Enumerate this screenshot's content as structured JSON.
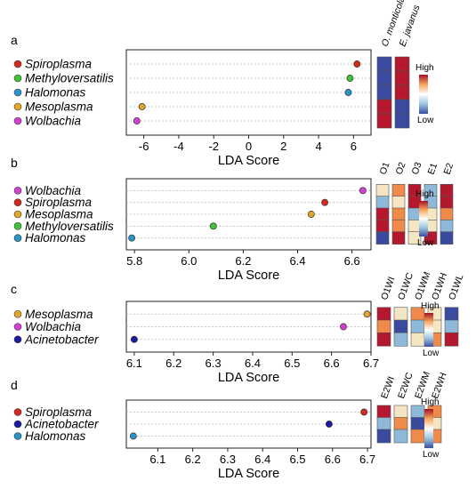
{
  "colors": {
    "Spiroplasma": "#d42a1e",
    "Methyloversatilis": "#3ec43a",
    "Halomonas": "#2a93c9",
    "Mesoplasma": "#e3a62a",
    "Wolbachia": "#d43fd6",
    "Acinetobacter": "#1a1aa3",
    "heat_levels": [
      "#3a4a9e",
      "#8fb9d9",
      "#f4e6c2",
      "#f08a4b",
      "#b3182e"
    ],
    "gradient": [
      "#3b4fa3",
      "#9cc5e0",
      "#ffffff",
      "#f6a45c",
      "#a50f27"
    ]
  },
  "heat_key": {
    "high": "High",
    "low": "Low"
  },
  "chart_data": [
    {
      "panel": "a",
      "type": "scatter",
      "xlabel": "LDA Score",
      "xlim": [
        -7,
        7
      ],
      "xticks": [
        -6,
        -4,
        -2,
        0,
        2,
        4,
        6
      ],
      "tick_labels": [
        "-6",
        "-4",
        "-2",
        "0",
        "2",
        "4",
        "6"
      ],
      "taxa": [
        "Spiroplasma",
        "Methyloversatilis",
        "Halomonas",
        "Mesoplasma",
        "Wolbachia"
      ],
      "values": [
        6.2,
        5.8,
        5.7,
        -6.1,
        -6.4
      ],
      "heatmap": {
        "columns": [
          "O. monticola",
          "E. javanus"
        ],
        "levels": [
          [
            0,
            4
          ],
          [
            0,
            4
          ],
          [
            0,
            4
          ],
          [
            4,
            0
          ],
          [
            4,
            0
          ]
        ]
      }
    },
    {
      "panel": "b",
      "type": "scatter",
      "xlabel": "LDA Score",
      "xlim": [
        5.77,
        6.67
      ],
      "xticks": [
        5.8,
        6.0,
        6.2,
        6.4,
        6.6
      ],
      "tick_labels": [
        "5.8",
        "6.0",
        "6.2",
        "6.4",
        "6.6"
      ],
      "taxa": [
        "Wolbachia",
        "Spiroplasma",
        "Mesoplasma",
        "Methyloversatilis",
        "Halomonas"
      ],
      "values": [
        6.64,
        6.5,
        6.45,
        6.09,
        5.79
      ],
      "heatmap": {
        "columns": [
          "O1",
          "O2",
          "O3",
          "E1",
          "E2"
        ],
        "levels": [
          [
            2,
            3,
            4,
            1,
            4
          ],
          [
            1,
            2,
            4,
            1,
            4
          ],
          [
            4,
            3,
            1,
            2,
            3
          ],
          [
            4,
            3,
            2,
            2,
            1
          ],
          [
            0,
            4,
            2,
            4,
            0
          ]
        ]
      }
    },
    {
      "panel": "c",
      "type": "scatter",
      "xlabel": "LDA Score",
      "xlim": [
        6.08,
        6.7
      ],
      "xticks": [
        6.1,
        6.2,
        6.3,
        6.4,
        6.5,
        6.6,
        6.7
      ],
      "tick_labels": [
        "6.1",
        "6.2",
        "6.3",
        "6.4",
        "6.5",
        "6.6",
        "6.7"
      ],
      "taxa": [
        "Mesoplasma",
        "Wolbachia",
        "Acinetobacter"
      ],
      "values": [
        6.69,
        6.63,
        6.1
      ],
      "heatmap": {
        "columns": [
          "O1WI",
          "O1WC",
          "O1WM",
          "O1WH",
          "O1WL"
        ],
        "levels": [
          [
            4,
            2,
            3,
            2,
            0
          ],
          [
            3,
            0,
            1,
            2,
            1
          ],
          [
            4,
            1,
            2,
            3,
            4
          ]
        ]
      }
    },
    {
      "panel": "d",
      "type": "scatter",
      "xlabel": "LDA Score",
      "xlim": [
        6.01,
        6.71
      ],
      "xticks": [
        6.1,
        6.2,
        6.3,
        6.4,
        6.5,
        6.6,
        6.7
      ],
      "tick_labels": [
        "6.1",
        "6.2",
        "6.3",
        "6.4",
        "6.5",
        "6.6",
        "6.7"
      ],
      "taxa": [
        "Spiroplasma",
        "Acinetobacter",
        "Halomonas"
      ],
      "values": [
        6.69,
        6.59,
        6.03
      ],
      "heatmap": {
        "columns": [
          "E2WI",
          "E2WC",
          "E2WM",
          "E2WH"
        ],
        "levels": [
          [
            4,
            2,
            1,
            3
          ],
          [
            1,
            3,
            0,
            2
          ],
          [
            0,
            1,
            3,
            3
          ]
        ]
      }
    }
  ]
}
